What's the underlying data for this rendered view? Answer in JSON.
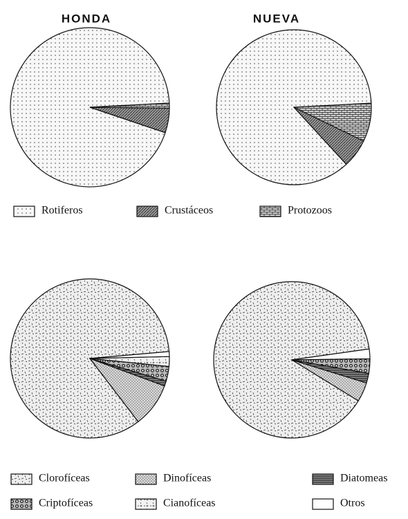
{
  "chart_data": [
    {
      "type": "pie",
      "title": "HONDA",
      "categories": [
        "Rotiferos",
        "Crustáceos",
        "Protozoos"
      ],
      "values": [
        94,
        5,
        1
      ],
      "colors": [
        "#f7f7f7",
        "#9a9a9a",
        "#cfcfcf"
      ]
    },
    {
      "type": "pie",
      "title": "NUEVA",
      "categories": [
        "Rotiferos",
        "Crustáceos",
        "Protozoos"
      ],
      "values": [
        86,
        6,
        8
      ],
      "colors": [
        "#f7f7f7",
        "#9a9a9a",
        "#cfcfcf"
      ]
    },
    {
      "type": "pie",
      "categories": [
        "Clorofíceas",
        "Dinofíceas",
        "Diatomeas",
        "Criptofíceas",
        "Cianofíceas",
        "Otros"
      ],
      "values": [
        84,
        9,
        1,
        3,
        2,
        1
      ],
      "colors": [
        "#eeeeee",
        "#dcdcdc",
        "#8a8a8a",
        "#bbbbbb",
        "#f2f2f2",
        "#ffffff"
      ]
    },
    {
      "type": "pie",
      "categories": [
        "Clorofíceas",
        "Dinofíceas",
        "Diatomeas",
        "Criptofíceas",
        "Cianofíceas",
        "Otros"
      ],
      "values": [
        89,
        4,
        2,
        3,
        0,
        2
      ],
      "colors": [
        "#eeeeee",
        "#dcdcdc",
        "#8a8a8a",
        "#bbbbbb",
        "#f2f2f2",
        "#ffffff"
      ]
    }
  ]
}
